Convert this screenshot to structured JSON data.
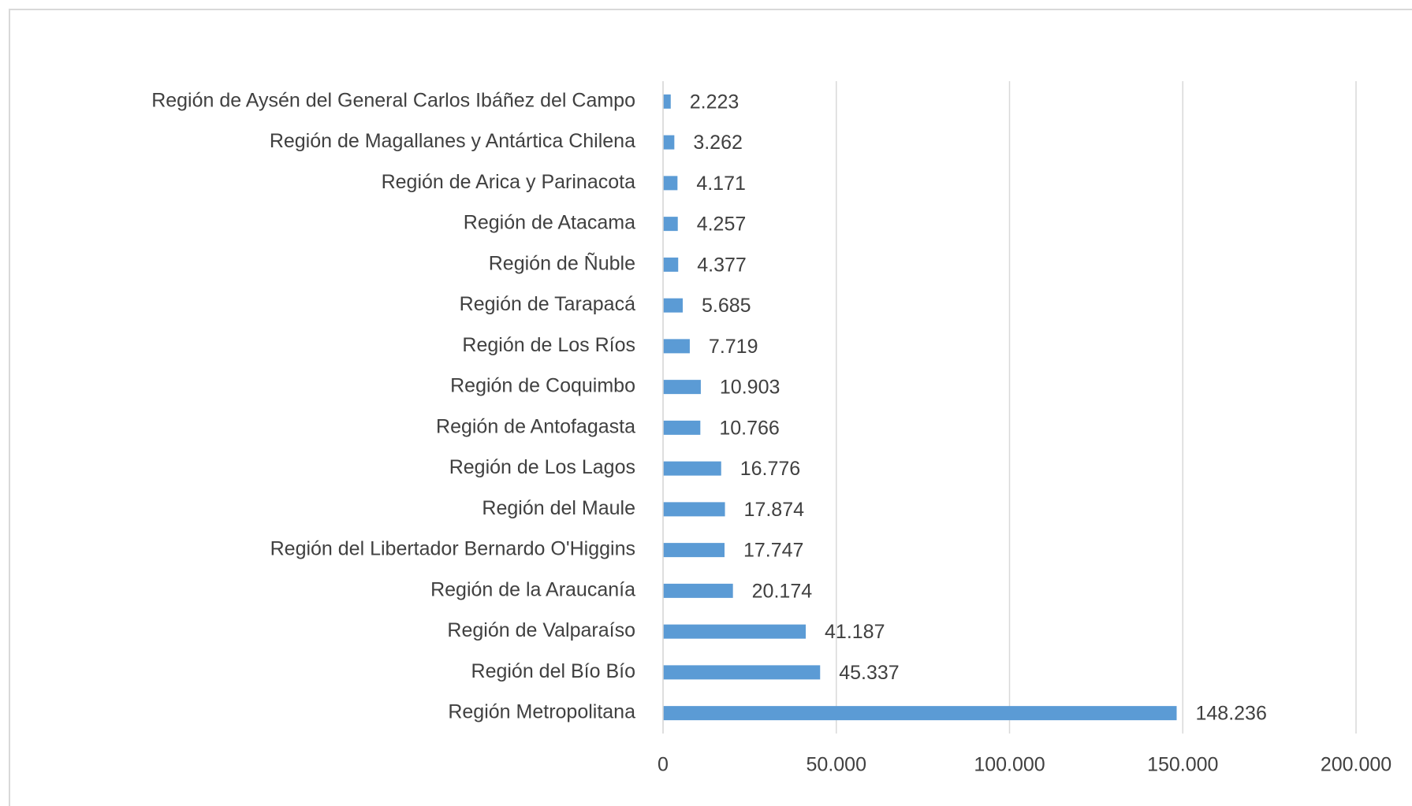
{
  "chart_data": {
    "type": "bar",
    "orientation": "horizontal",
    "categories": [
      "Región de Aysén del General Carlos Ibáñez del Campo",
      "Región de Magallanes y Antártica Chilena",
      "Región de Arica y Parinacota",
      "Región de Atacama",
      "Región de Ñuble",
      "Región de Tarapacá",
      "Región de Los Ríos",
      "Región de Coquimbo",
      "Región de Antofagasta",
      "Región de Los Lagos",
      "Región del Maule",
      "Región del Libertador Bernardo O'Higgins",
      "Región de la Araucanía",
      "Región de Valparaíso",
      "Región del Bío Bío",
      "Región Metropolitana"
    ],
    "values": [
      2223,
      3262,
      4171,
      4257,
      4377,
      5685,
      7719,
      10903,
      10766,
      16776,
      17874,
      17747,
      20174,
      41187,
      45337,
      148236
    ],
    "value_labels": [
      "2.223",
      "3.262",
      "4.171",
      "4.257",
      "4.377",
      "5.685",
      "7.719",
      "10.903",
      "10.766",
      "16.776",
      "17.874",
      "17.747",
      "20.174",
      "41.187",
      "45.337",
      "148.236"
    ],
    "color": "#5b9bd5",
    "xlim": [
      0,
      200000
    ],
    "xticks": [
      0,
      {
        "value": 50000,
        "label": "50.000"
      },
      {
        "value": 100000,
        "label": "100.000"
      },
      {
        "value": 150000,
        "label": "150.000"
      },
      {
        "value": 200000,
        "label": "200.000"
      }
    ],
    "grid": true
  }
}
